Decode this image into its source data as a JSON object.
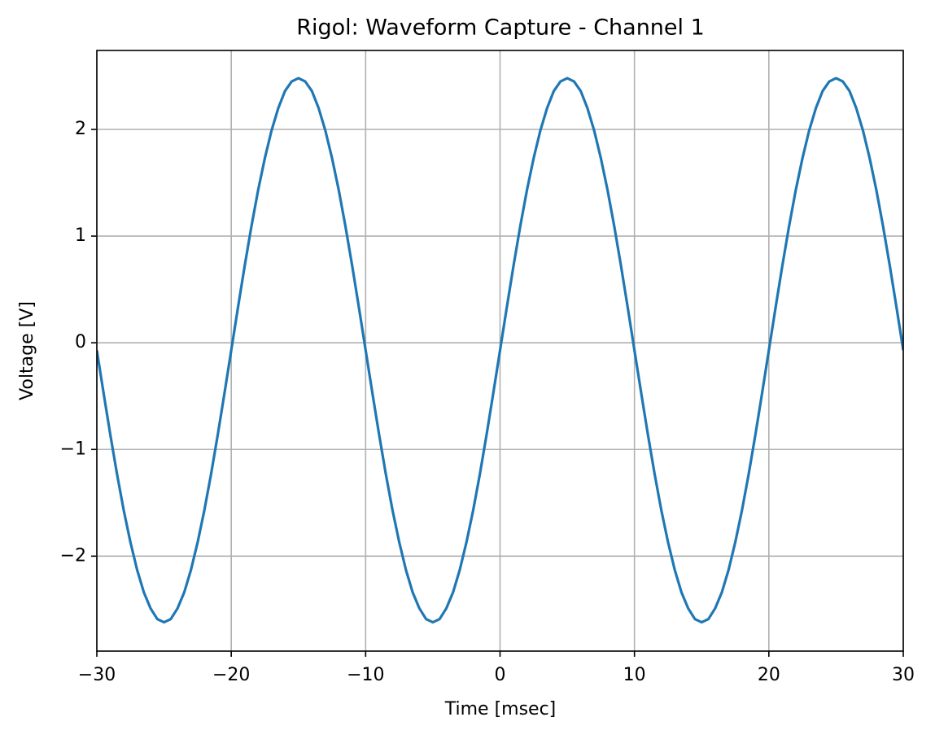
{
  "chart_data": {
    "type": "line",
    "title": "Rigol: Waveform Capture - Channel 1",
    "xlabel": "Time [msec]",
    "ylabel": "Voltage [V]",
    "xlim": [
      -30,
      30
    ],
    "ylim": [
      -2.89,
      2.74
    ],
    "xticks": [
      {
        "value": -30,
        "label": "−30"
      },
      {
        "value": -20,
        "label": "−20"
      },
      {
        "value": -10,
        "label": "−10"
      },
      0,
      10,
      20,
      30
    ],
    "yticks": [
      {
        "value": -2,
        "label": "−2"
      },
      {
        "value": -1,
        "label": "−1"
      },
      0,
      1,
      2
    ],
    "grid": true,
    "x": [
      -30,
      -29.5,
      -29,
      -28.5,
      -28,
      -27.5,
      -27,
      -26.5,
      -26,
      -25.5,
      -25,
      -24.5,
      -24,
      -23.5,
      -23,
      -22.5,
      -22,
      -21.5,
      -21,
      -20.5,
      -20,
      -19.5,
      -19,
      -18.5,
      -18,
      -17.5,
      -17,
      -16.5,
      -16,
      -15.5,
      -15,
      -14.5,
      -14,
      -13.5,
      -13,
      -12.5,
      -12,
      -11.5,
      -11,
      -10.5,
      -10,
      -9.5,
      -9,
      -8.5,
      -8,
      -7.5,
      -7,
      -6.5,
      -6,
      -5.5,
      -5,
      -4.5,
      -4,
      -3.5,
      -3,
      -2.5,
      -2,
      -1.5,
      -1,
      -0.5,
      0,
      0.5,
      1,
      1.5,
      2,
      2.5,
      3,
      3.5,
      4,
      4.5,
      5,
      5.5,
      6,
      6.5,
      7,
      7.5,
      8,
      8.5,
      9,
      9.5,
      10,
      10.5,
      11,
      11.5,
      12,
      12.5,
      13,
      13.5,
      14,
      14.5,
      15,
      15.5,
      16,
      16.5,
      17,
      17.5,
      18,
      18.5,
      19,
      19.5,
      20,
      20.5,
      21,
      21.5,
      22,
      22.5,
      23,
      23.5,
      24,
      24.5,
      25,
      25.5,
      26,
      26.5,
      27,
      27.5,
      28,
      28.5,
      29,
      29.5,
      30
    ],
    "series": [
      {
        "color": "#1f77b4",
        "values": [
          -0.07,
          -0.47,
          -0.86,
          -1.23,
          -1.57,
          -1.87,
          -2.13,
          -2.34,
          -2.49,
          -2.59,
          -2.62,
          -2.59,
          -2.49,
          -2.34,
          -2.13,
          -1.87,
          -1.57,
          -1.23,
          -0.86,
          -0.47,
          -0.07,
          0.33,
          0.72,
          1.09,
          1.43,
          1.73,
          1.99,
          2.2,
          2.36,
          2.45,
          2.48,
          2.45,
          2.36,
          2.2,
          1.99,
          1.73,
          1.43,
          1.09,
          0.72,
          0.33,
          -0.07,
          -0.47,
          -0.86,
          -1.23,
          -1.57,
          -1.87,
          -2.13,
          -2.34,
          -2.49,
          -2.59,
          -2.62,
          -2.59,
          -2.49,
          -2.34,
          -2.13,
          -1.87,
          -1.57,
          -1.23,
          -0.86,
          -0.47,
          -0.07,
          0.33,
          0.72,
          1.09,
          1.43,
          1.73,
          1.99,
          2.2,
          2.36,
          2.45,
          2.48,
          2.45,
          2.36,
          2.2,
          1.99,
          1.73,
          1.43,
          1.09,
          0.72,
          0.33,
          -0.07,
          -0.47,
          -0.86,
          -1.23,
          -1.57,
          -1.87,
          -2.13,
          -2.34,
          -2.49,
          -2.59,
          -2.62,
          -2.59,
          -2.49,
          -2.34,
          -2.13,
          -1.87,
          -1.57,
          -1.23,
          -0.86,
          -0.47,
          -0.07,
          0.33,
          0.72,
          1.09,
          1.43,
          1.73,
          1.99,
          2.2,
          2.36,
          2.45,
          2.48,
          2.45,
          2.36,
          2.2,
          1.99,
          1.73,
          1.43,
          1.09,
          0.72,
          0.33,
          -0.07
        ]
      }
    ]
  }
}
